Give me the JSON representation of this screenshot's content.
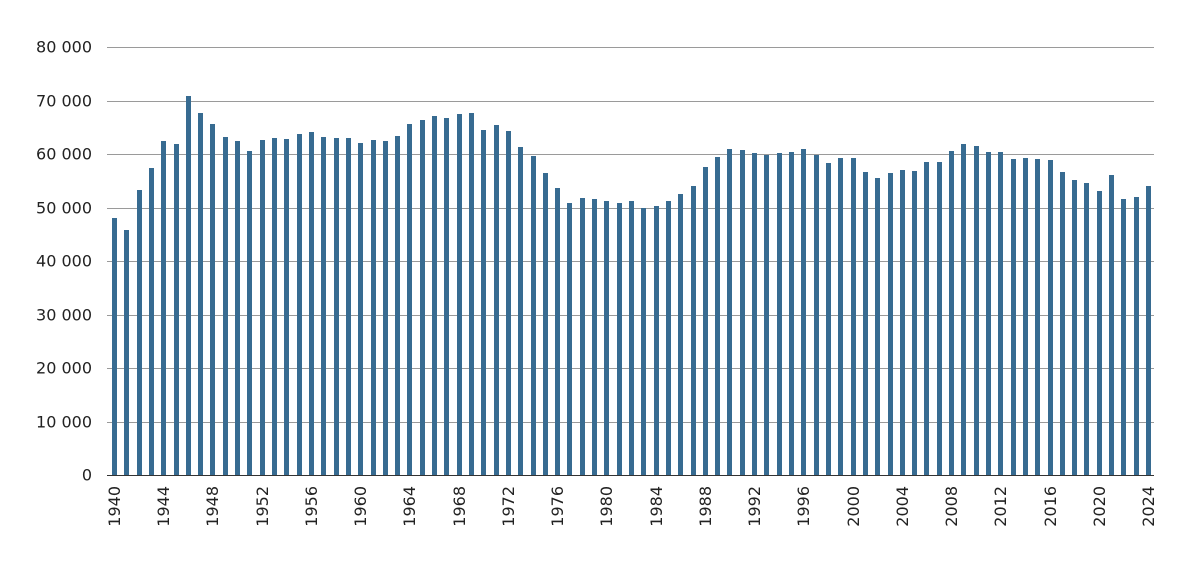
{
  "chart_data": {
    "type": "bar",
    "title": "",
    "xlabel": "",
    "ylabel": "",
    "ylim": [
      0,
      80000
    ],
    "yticks": [
      0,
      10000,
      20000,
      30000,
      40000,
      50000,
      60000,
      70000,
      80000
    ],
    "ytick_labels": [
      "0",
      "10 000",
      "20 000",
      "30 000",
      "40 000",
      "50 000",
      "60 000",
      "70 000",
      "80 000"
    ],
    "xtick_labels": [
      "1940",
      "1944",
      "1948",
      "1952",
      "1956",
      "1960",
      "1964",
      "1968",
      "1972",
      "1976",
      "1980",
      "1984",
      "1988",
      "1992",
      "1996",
      "2000",
      "2004",
      "2008",
      "2012",
      "2016",
      "2020",
      "2024"
    ],
    "grid": true,
    "legend": null,
    "color": "#376b91",
    "categories": [
      1940,
      1941,
      1942,
      1943,
      1944,
      1945,
      1946,
      1947,
      1948,
      1949,
      1950,
      1951,
      1952,
      1953,
      1954,
      1955,
      1956,
      1957,
      1958,
      1959,
      1960,
      1961,
      1962,
      1963,
      1964,
      1965,
      1966,
      1967,
      1968,
      1969,
      1970,
      1971,
      1972,
      1973,
      1974,
      1975,
      1976,
      1977,
      1978,
      1979,
      1980,
      1981,
      1982,
      1983,
      1984,
      1985,
      1986,
      1987,
      1988,
      1989,
      1990,
      1991,
      1992,
      1993,
      1994,
      1995,
      1996,
      1997,
      1998,
      1999,
      2000,
      2001,
      2002,
      2003,
      2004,
      2005,
      2006,
      2007,
      2008,
      2009,
      2010,
      2011,
      2012,
      2013,
      2014,
      2015,
      2016,
      2017,
      2018,
      2019,
      2020,
      2021,
      2022,
      2023,
      2024
    ],
    "values": [
      48000,
      45800,
      53300,
      57300,
      62400,
      61900,
      70800,
      67700,
      65700,
      63100,
      62500,
      60600,
      62600,
      63000,
      62800,
      63700,
      64200,
      63100,
      63000,
      63000,
      62000,
      62600,
      62400,
      63300,
      65700,
      66300,
      67100,
      66800,
      67400,
      67700,
      64500,
      65500,
      64300,
      61300,
      59600,
      56400,
      53600,
      50900,
      51800,
      51600,
      51200,
      50800,
      51300,
      50000,
      50300,
      51200,
      52500,
      54100,
      57600,
      59400,
      60900,
      60800,
      60100,
      59800,
      60100,
      60300,
      60900,
      59900,
      58400,
      59300,
      59300,
      56700,
      55500,
      56500,
      57000,
      56800,
      58500,
      58500,
      60500,
      61800,
      61500,
      60300,
      60400,
      59000,
      59200,
      59100,
      58900,
      56700,
      55100,
      54600,
      53100,
      56100,
      51500,
      52000,
      54000
    ]
  }
}
